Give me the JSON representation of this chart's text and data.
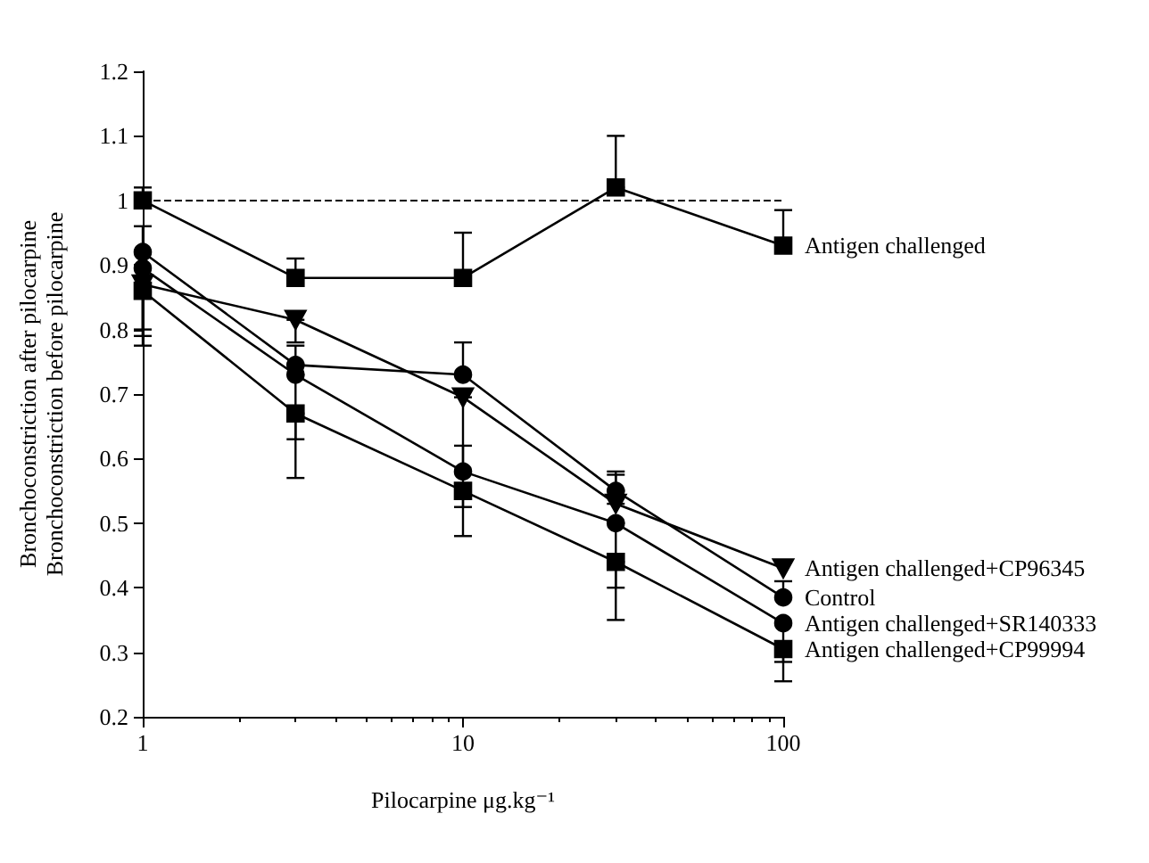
{
  "chart_data": {
    "type": "line",
    "xlabel": "Pilocarpine μg.kg⁻¹",
    "ylabel": "Bronchoconstriction after pilocarpine\nBronchoconstriction before pilocarpine",
    "x": [
      1,
      3,
      10,
      30,
      100
    ],
    "series": [
      {
        "name": "Antigen challenged",
        "color": "#000000",
        "marker": "square",
        "values": [
          1.0,
          0.88,
          0.88,
          1.02,
          0.93
        ],
        "errors": [
          [
            1.0,
            1.02
          ],
          [
            0.88,
            0.91
          ],
          [
            0.88,
            0.95
          ],
          [
            1.02,
            1.1
          ],
          [
            0.93,
            0.985
          ]
        ]
      },
      {
        "name": "Antigen challenged+CP96345",
        "color": "#000000",
        "marker": "triangle-down",
        "values": [
          0.87,
          0.815,
          0.695,
          0.53,
          0.43
        ],
        "errors": [
          [
            0.8,
            0.87
          ],
          [
            0.78,
            0.815
          ],
          [
            0.48,
            0.695
          ],
          [
            0.53,
            0.575
          ],
          null
        ]
      },
      {
        "name": "Control",
        "color": "#000000",
        "marker": "circle",
        "values": [
          0.92,
          0.745,
          0.73,
          0.55,
          0.385
        ],
        "errors": [
          [
            0.92,
            0.96
          ],
          [
            0.745,
            0.775
          ],
          [
            0.73,
            0.78
          ],
          [
            0.55,
            0.58
          ],
          [
            0.385,
            0.41
          ]
        ]
      },
      {
        "name": "Antigen challenged+SR140333",
        "color": "#000000",
        "marker": "circle",
        "values": [
          0.895,
          0.73,
          0.58,
          0.5,
          0.345
        ],
        "errors": [
          [
            0.79,
            0.895
          ],
          [
            0.63,
            0.73
          ],
          [
            0.58,
            0.62
          ],
          [
            0.4,
            0.5
          ],
          [
            0.285,
            0.345
          ]
        ]
      },
      {
        "name": "Antigen challenged+CP99994",
        "color": "#000000",
        "marker": "square",
        "values": [
          0.86,
          0.67,
          0.55,
          0.44,
          0.305
        ],
        "errors": [
          [
            0.775,
            0.86
          ],
          [
            0.57,
            0.67
          ],
          [
            0.525,
            0.55
          ],
          [
            0.35,
            0.44
          ],
          [
            0.255,
            0.305
          ]
        ]
      }
    ],
    "log": "x",
    "xlim": [
      1,
      100
    ],
    "xticks": [
      1,
      10,
      100
    ],
    "ylim": [
      0.2,
      1.2
    ],
    "yticks": [
      0.2,
      0.3,
      0.4,
      0.5,
      0.6,
      0.7,
      0.8,
      0.9,
      1,
      1.1,
      1.2
    ],
    "ref_lines": [
      {
        "axis": "y",
        "value": 1,
        "line_style": "dashed"
      }
    ],
    "grid": false,
    "legend": false,
    "line_style": "solid"
  }
}
